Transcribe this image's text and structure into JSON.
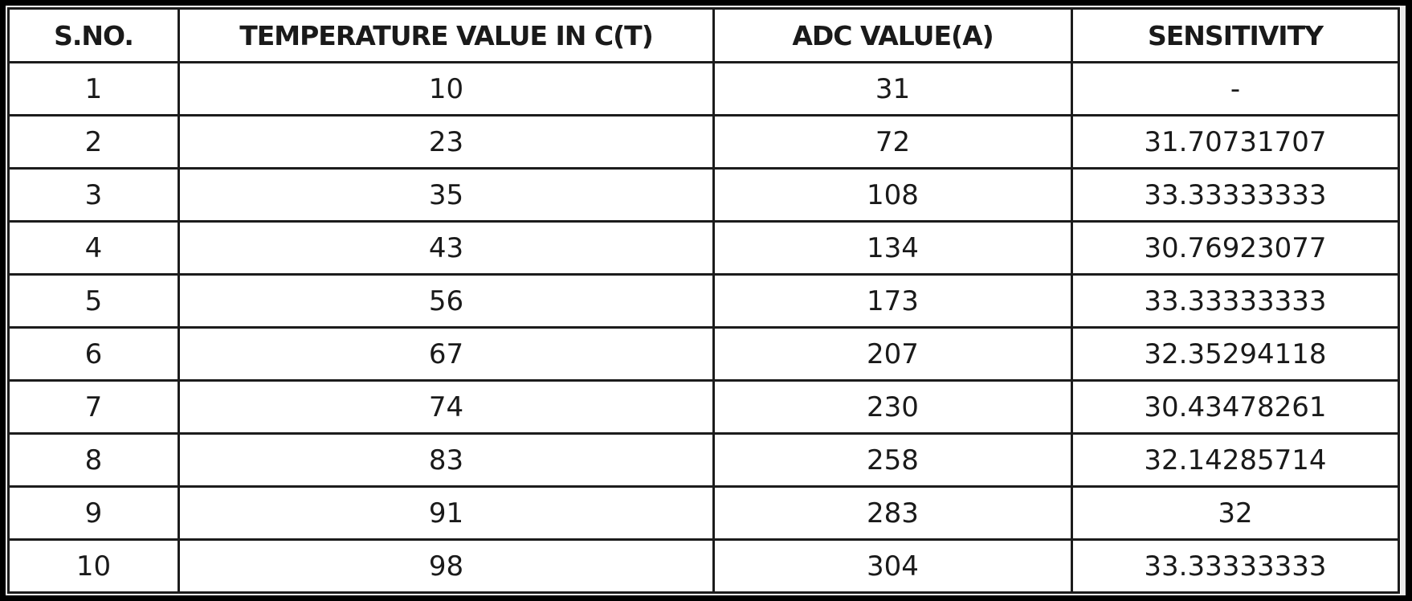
{
  "table": {
    "headers": [
      "S.NO.",
      "TEMPERATURE VALUE IN C(T)",
      "ADC VALUE(A)",
      "SENSITIVITY"
    ],
    "rows": [
      [
        "1",
        "10",
        "31",
        "-"
      ],
      [
        "2",
        "23",
        "72",
        "31.70731707"
      ],
      [
        "3",
        "35",
        "108",
        "33.33333333"
      ],
      [
        "4",
        "43",
        "134",
        "30.76923077"
      ],
      [
        "5",
        "56",
        "173",
        "33.33333333"
      ],
      [
        "6",
        "67",
        "207",
        "32.35294118"
      ],
      [
        "7",
        "74",
        "230",
        "30.43478261"
      ],
      [
        "8",
        "83",
        "258",
        "32.14285714"
      ],
      [
        "9",
        "91",
        "283",
        "32"
      ],
      [
        "10",
        "98",
        "304",
        "33.33333333"
      ]
    ]
  },
  "colors": {
    "background": "#000000",
    "sheet": "#ffffff",
    "border": "#1c1c1c",
    "text": "#1a1a1a"
  }
}
